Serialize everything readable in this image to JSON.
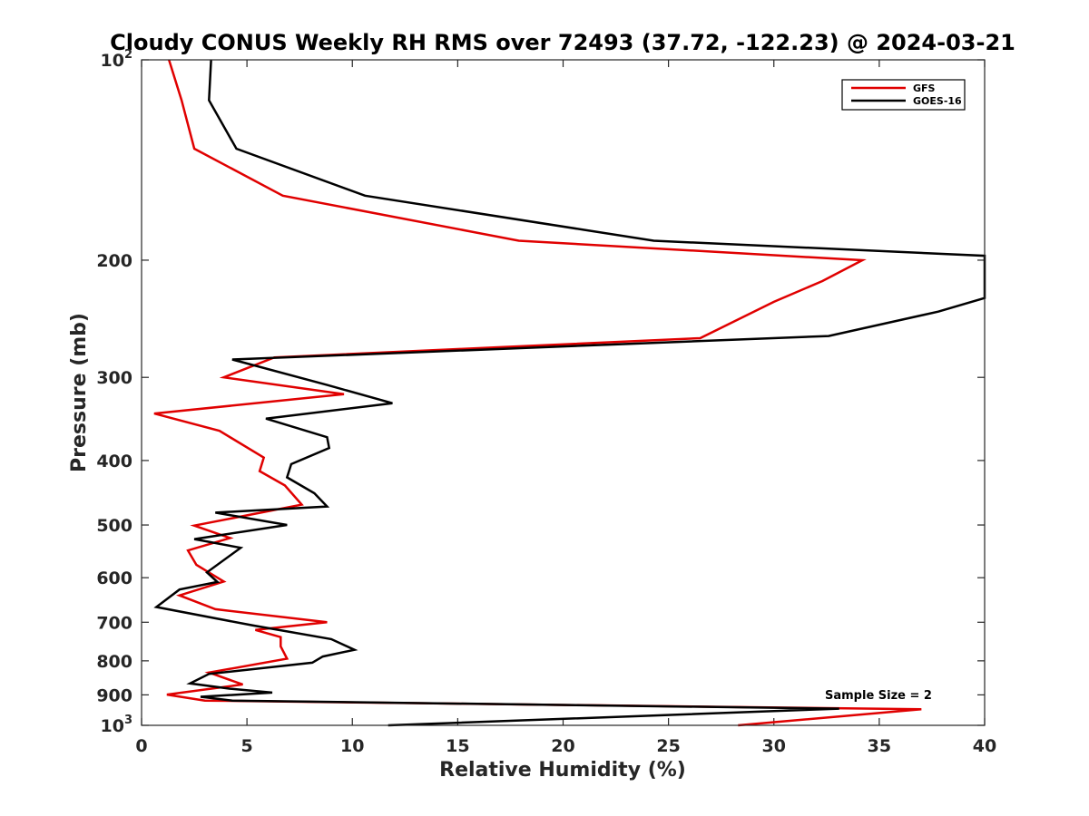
{
  "chart_data": {
    "type": "line",
    "title": "Cloudy CONUS Weekly RH RMS over 72493 (37.72, -122.23) @ 2024-03-21",
    "xlabel": "Relative Humidity (%)",
    "ylabel": "Pressure (mb)",
    "xlim": [
      0,
      40
    ],
    "ylim": [
      1000,
      100
    ],
    "yscale": "log",
    "y_reversed": true,
    "grid": false,
    "legend_position": "top-right",
    "x_ticks": [
      "0",
      "5",
      "10",
      "15",
      "20",
      "25",
      "30",
      "35",
      "40"
    ],
    "x_tick_values": [
      0,
      5,
      10,
      15,
      20,
      25,
      30,
      35,
      40
    ],
    "y_ticks": [
      {
        "value": 100,
        "base": "10",
        "sup": "2",
        "label": ""
      },
      {
        "value": 200,
        "base": "",
        "sup": "",
        "label": "200"
      },
      {
        "value": 300,
        "base": "",
        "sup": "",
        "label": "300"
      },
      {
        "value": 400,
        "base": "",
        "sup": "",
        "label": "400"
      },
      {
        "value": 500,
        "base": "",
        "sup": "",
        "label": "500"
      },
      {
        "value": 600,
        "base": "",
        "sup": "",
        "label": "600"
      },
      {
        "value": 700,
        "base": "",
        "sup": "",
        "label": "700"
      },
      {
        "value": 800,
        "base": "",
        "sup": "",
        "label": "800"
      },
      {
        "value": 900,
        "base": "",
        "sup": "",
        "label": "900"
      },
      {
        "value": 1000,
        "base": "10",
        "sup": "3",
        "label": ""
      }
    ],
    "series": [
      {
        "name": "GFS",
        "color": "#e00000",
        "points": [
          [
            1.3,
            100
          ],
          [
            1.9,
            115
          ],
          [
            2.5,
            136
          ],
          [
            6.7,
            160
          ],
          [
            17.9,
            187
          ],
          [
            34.2,
            200
          ],
          [
            32.3,
            215
          ],
          [
            30.0,
            231
          ],
          [
            26.5,
            262
          ],
          [
            15.0,
            272
          ],
          [
            6.3,
            280
          ],
          [
            3.9,
            300
          ],
          [
            9.6,
            318
          ],
          [
            0.6,
            340
          ],
          [
            3.7,
            361
          ],
          [
            5.8,
            396
          ],
          [
            5.6,
            415
          ],
          [
            6.8,
            436
          ],
          [
            7.6,
            466
          ],
          [
            2.5,
            501
          ],
          [
            4.2,
            523
          ],
          [
            2.2,
            546
          ],
          [
            2.6,
            574
          ],
          [
            3.9,
            608
          ],
          [
            1.8,
            638
          ],
          [
            3.5,
            669
          ],
          [
            8.8,
            700
          ],
          [
            5.4,
            719
          ],
          [
            6.6,
            737
          ],
          [
            6.6,
            761
          ],
          [
            6.9,
            794
          ],
          [
            3.2,
            833
          ],
          [
            4.8,
            868
          ],
          [
            1.2,
            899
          ],
          [
            3.0,
            918
          ],
          [
            37.0,
            946
          ],
          [
            28.3,
            1000
          ]
        ]
      },
      {
        "name": "GOES-16",
        "color": "#000000",
        "points": [
          [
            3.3,
            100
          ],
          [
            3.2,
            115
          ],
          [
            4.5,
            136
          ],
          [
            10.6,
            160
          ],
          [
            24.3,
            187
          ],
          [
            40.0,
            197
          ],
          [
            40.0,
            228
          ],
          [
            37.8,
            239
          ],
          [
            32.6,
            260
          ],
          [
            4.3,
            282
          ],
          [
            8.8,
            308
          ],
          [
            11.9,
            328
          ],
          [
            5.9,
            346
          ],
          [
            8.8,
            369
          ],
          [
            8.9,
            383
          ],
          [
            7.1,
            405
          ],
          [
            6.9,
            424
          ],
          [
            8.2,
            448
          ],
          [
            8.8,
            469
          ],
          [
            3.5,
            479
          ],
          [
            6.9,
            500
          ],
          [
            2.5,
            525
          ],
          [
            4.7,
            541
          ],
          [
            3.1,
            589
          ],
          [
            3.6,
            609
          ],
          [
            1.8,
            625
          ],
          [
            0.7,
            664
          ],
          [
            5.3,
            708
          ],
          [
            9.0,
            742
          ],
          [
            10.1,
            770
          ],
          [
            8.6,
            788
          ],
          [
            8.1,
            805
          ],
          [
            3.2,
            837
          ],
          [
            2.3,
            865
          ],
          [
            4.2,
            881
          ],
          [
            6.2,
            893
          ],
          [
            2.8,
            906
          ],
          [
            4.3,
            918
          ],
          [
            33.1,
            944
          ],
          [
            11.7,
            1000
          ]
        ]
      }
    ],
    "annotation": "Sample Size = 2"
  }
}
